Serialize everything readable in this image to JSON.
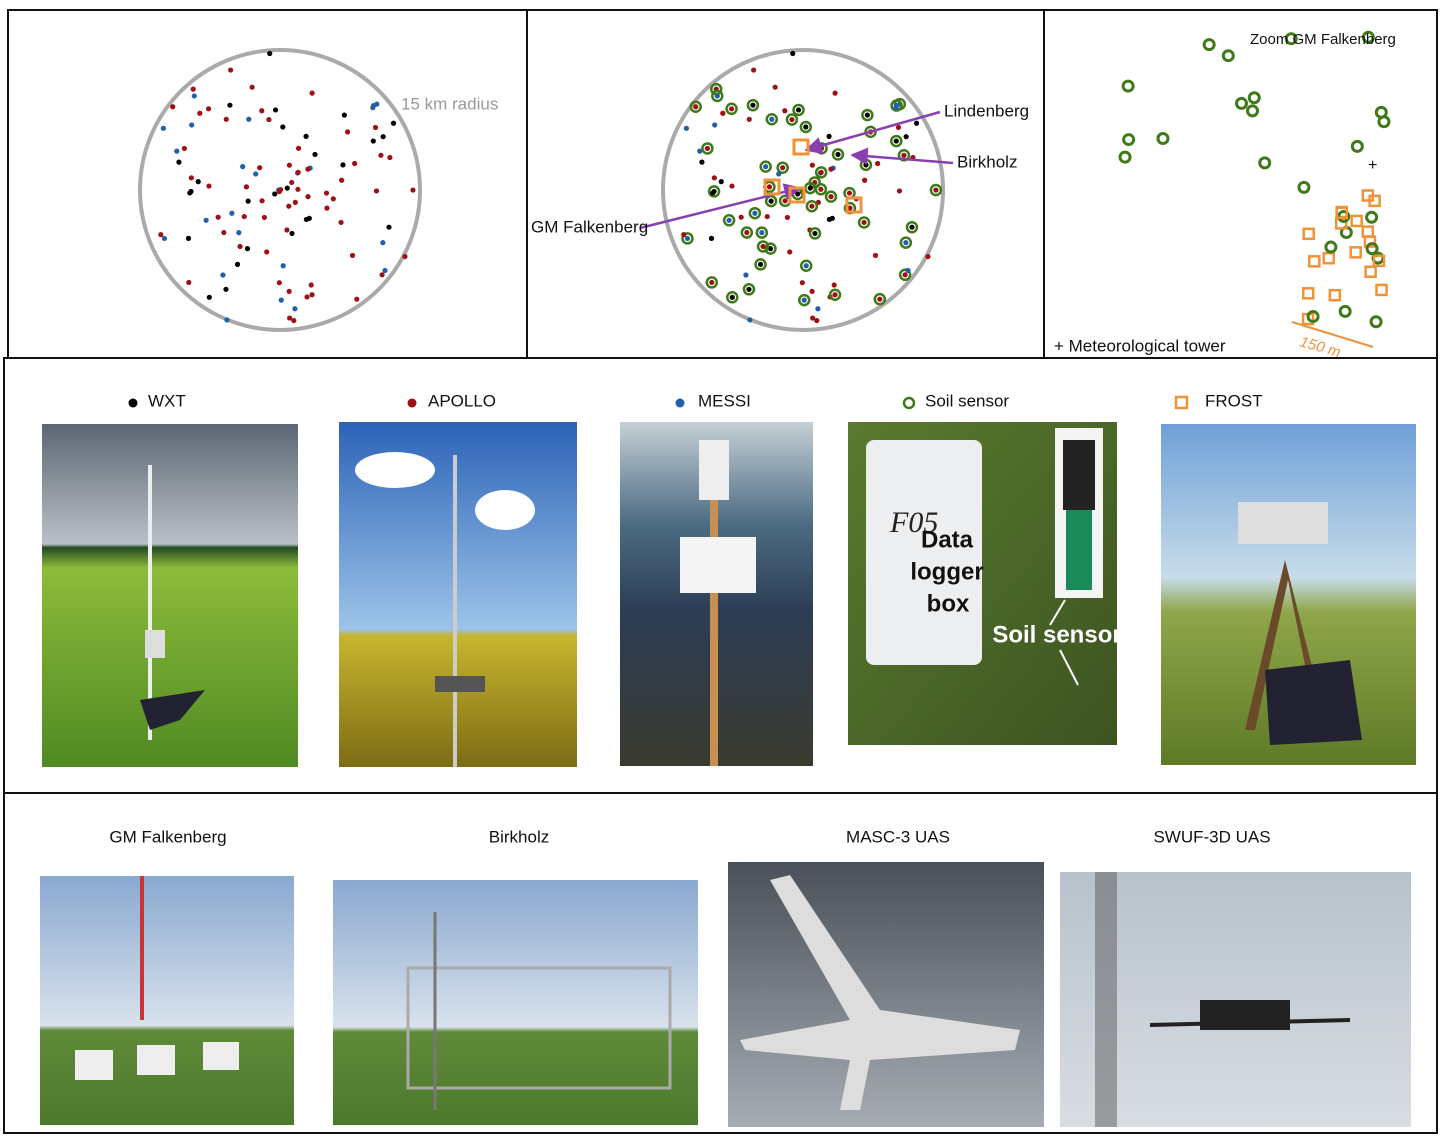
{
  "maps": {
    "radius_label": "15 km radius",
    "site_labels": [
      "Lindenberg",
      "Birkholz",
      "GM Falkenberg"
    ],
    "zoom_title": "Zoom GM Falkenberg",
    "tower_label": "+ Meteorological tower",
    "scale_label": "150 m"
  },
  "legend": [
    "WXT",
    "APOLLO",
    "MESSI",
    "Soil sensor",
    "FROST"
  ],
  "photo_texts": {
    "box_id": "F05",
    "box_words": [
      "Data",
      "logger",
      "box"
    ],
    "sensor": "Soil sensor"
  },
  "captions": [
    "GM Falkenberg",
    "Birkholz",
    "MASC-3 UAS",
    "SWUF-3D UAS"
  ]
}
